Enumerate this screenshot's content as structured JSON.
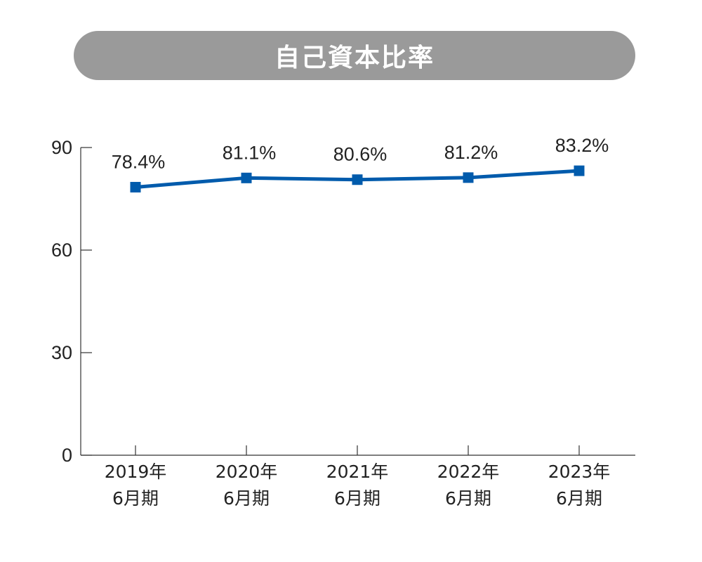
{
  "title": "自己資本比率",
  "colors": {
    "title_bg": "#9a9a9a",
    "line": "#005bac",
    "axis": "#333333"
  },
  "chart_data": {
    "type": "line",
    "title": "自己資本比率",
    "categories": [
      [
        "2019年",
        "6月期"
      ],
      [
        "2020年",
        "6月期"
      ],
      [
        "2021年",
        "6月期"
      ],
      [
        "2022年",
        "6月期"
      ],
      [
        "2023年",
        "6月期"
      ]
    ],
    "values": [
      78.4,
      81.1,
      80.6,
      81.2,
      83.2
    ],
    "data_labels": [
      "78.4%",
      "81.1%",
      "80.6%",
      "81.2%",
      "83.2%"
    ],
    "ylim": [
      0,
      90
    ],
    "yticks": [
      0,
      30,
      60,
      90
    ],
    "xlabel": "",
    "ylabel": "",
    "marker": "square",
    "grid": false,
    "legend": "none"
  }
}
